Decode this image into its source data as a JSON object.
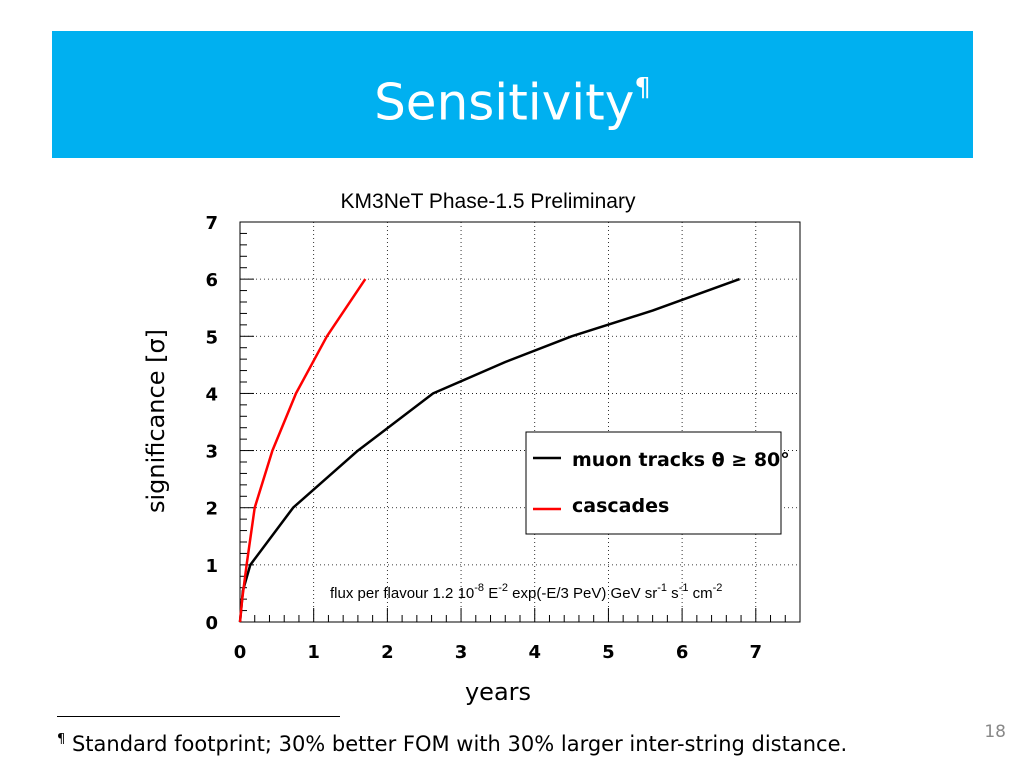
{
  "slide": {
    "title": "Sensitivity",
    "title_mark": "¶",
    "footnote_mark": "¶",
    "footnote_text": " Standard footprint; 30% better FOM with 30% larger inter-string distance.",
    "slide_number": "18",
    "title_color": "#00b0f0"
  },
  "chart_data": {
    "type": "line",
    "title": "KM3NeT Phase-1.5 Preliminary",
    "xlabel": "years",
    "ylabel": "significance [σ]",
    "xlim": [
      0,
      7.6
    ],
    "ylim": [
      0,
      7
    ],
    "x_ticks": [
      "0",
      "1",
      "2",
      "3",
      "4",
      "5",
      "6",
      "7"
    ],
    "y_ticks": [
      "0",
      "1",
      "2",
      "3",
      "4",
      "5",
      "6",
      "7"
    ],
    "grid": true,
    "legend_position": "right",
    "annotation": {
      "prefix": "flux per flavour 1.2 10",
      "exp1": "-8",
      "mid": " E",
      "exp2": "-2",
      "tail1": " exp(-E/3 PeV) GeV sr",
      "exp3": "-1",
      "tail2": " s",
      "exp4": "-1",
      "tail3": " cm",
      "exp5": "-2"
    },
    "series": [
      {
        "name": "muon tracks θ ≥ 80°",
        "color": "#000000",
        "x": [
          0,
          0.04,
          0.14,
          0.72,
          1.6,
          2.62,
          3.6,
          4.5,
          5.6,
          6.78
        ],
        "y": [
          0,
          0.55,
          1.0,
          2.0,
          3.0,
          4.0,
          4.55,
          5.0,
          5.45,
          6.0
        ]
      },
      {
        "name": "cascades",
        "color": "#ff0000",
        "x": [
          0,
          0.03,
          0.09,
          0.2,
          0.44,
          0.76,
          1.18,
          1.7
        ],
        "y": [
          0,
          0.4,
          1.0,
          2.0,
          3.0,
          4.0,
          5.0,
          6.0
        ]
      }
    ]
  }
}
